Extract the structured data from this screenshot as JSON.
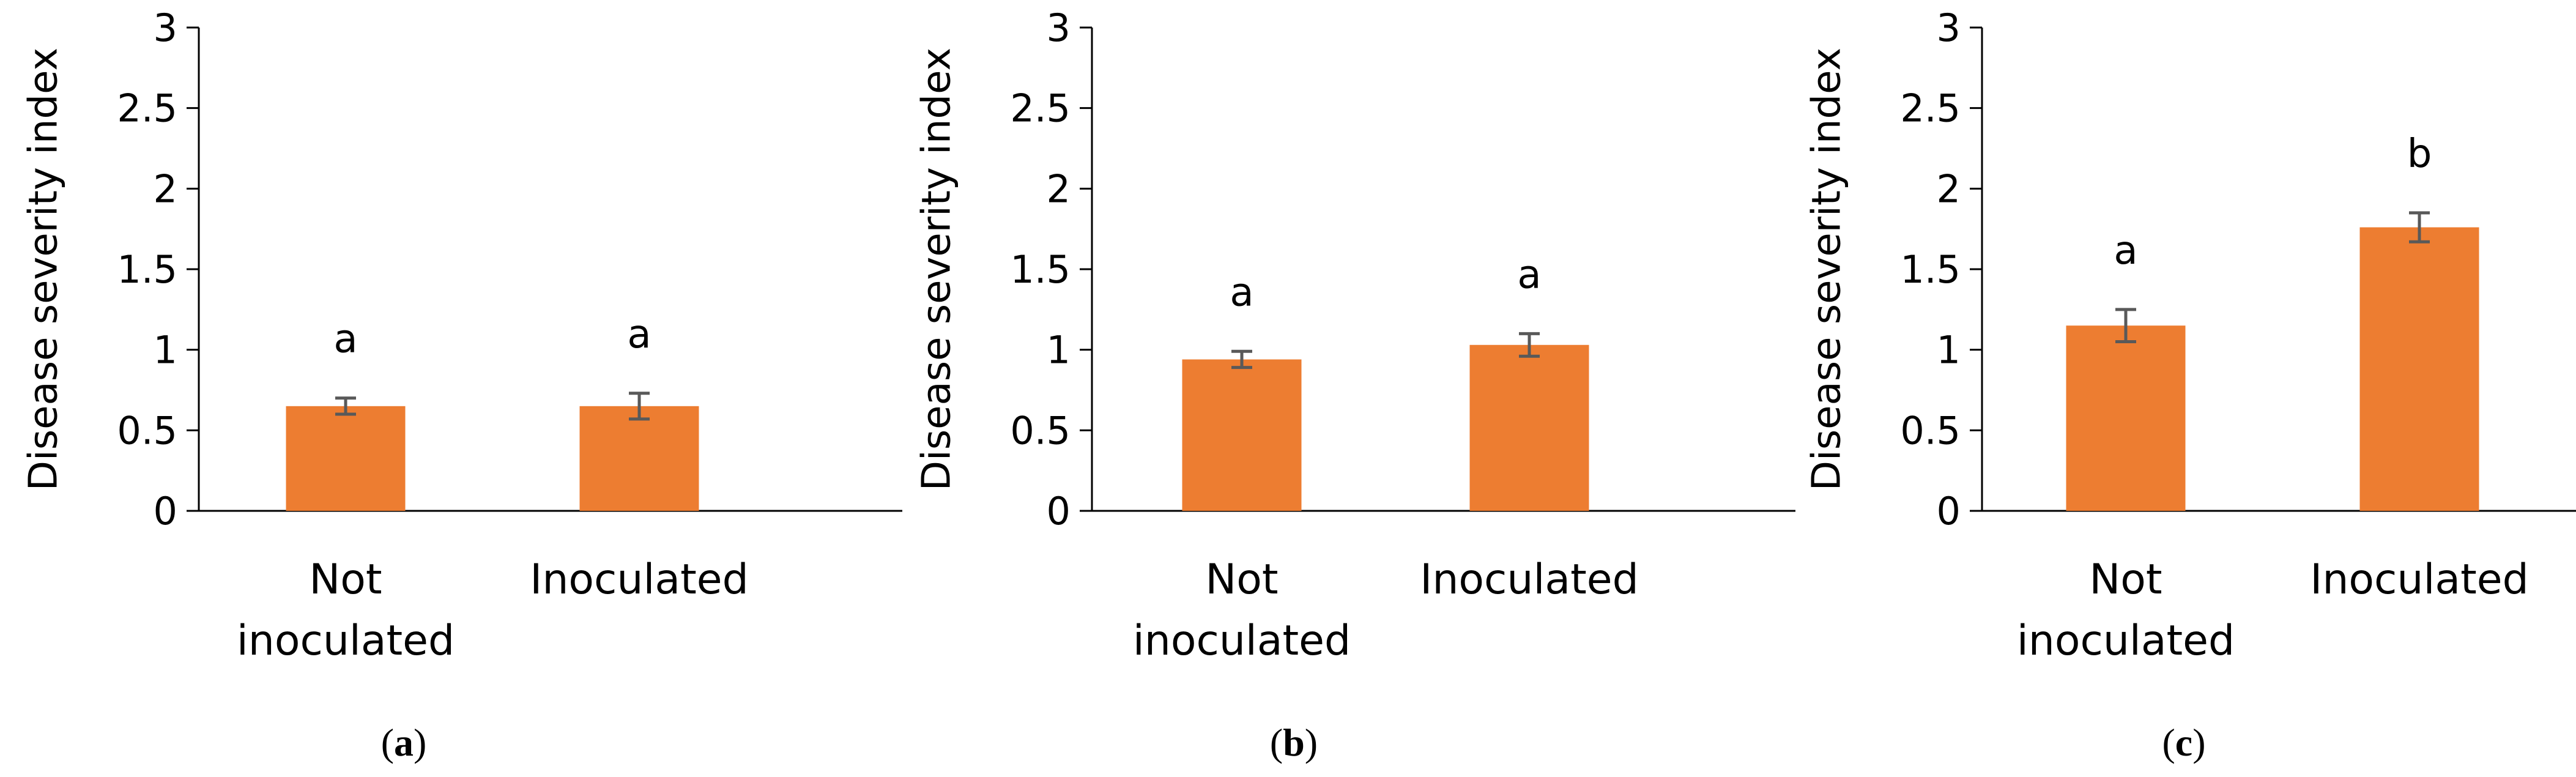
{
  "chart_data": [
    {
      "type": "bar",
      "panel_label": "a",
      "ylabel": "Disease severity index",
      "ylim": [
        0,
        3
      ],
      "yticks": [
        "0",
        "0.5",
        "1",
        "1.5",
        "2",
        "2.5",
        "3"
      ],
      "categories": [
        [
          "Not",
          "inoculated"
        ],
        [
          "Inoculated"
        ]
      ],
      "values": [
        0.65,
        0.65
      ],
      "errors": [
        0.05,
        0.08
      ],
      "significance": [
        "a",
        "a"
      ],
      "bar_color": "#ED7D31",
      "error_color": "#595959"
    },
    {
      "type": "bar",
      "panel_label": "b",
      "ylabel": "Disease severity index",
      "ylim": [
        0,
        3
      ],
      "yticks": [
        "0",
        "0.5",
        "1",
        "1.5",
        "2",
        "2.5",
        "3"
      ],
      "categories": [
        [
          "Not",
          "inoculated"
        ],
        [
          "Inoculated"
        ]
      ],
      "values": [
        0.94,
        1.03
      ],
      "errors": [
        0.05,
        0.07
      ],
      "significance": [
        "a",
        "a"
      ],
      "bar_color": "#ED7D31",
      "error_color": "#595959"
    },
    {
      "type": "bar",
      "panel_label": "c",
      "ylabel": "Disease severity index",
      "ylim": [
        0,
        3
      ],
      "yticks": [
        "0",
        "0.5",
        "1",
        "1.5",
        "2",
        "2.5",
        "3"
      ],
      "categories": [
        [
          "Not",
          "inoculated"
        ],
        [
          "Inoculated"
        ]
      ],
      "values": [
        1.15,
        1.76
      ],
      "errors": [
        0.1,
        0.09
      ],
      "significance": [
        "a",
        "b"
      ],
      "bar_color": "#ED7D31",
      "error_color": "#595959"
    }
  ]
}
